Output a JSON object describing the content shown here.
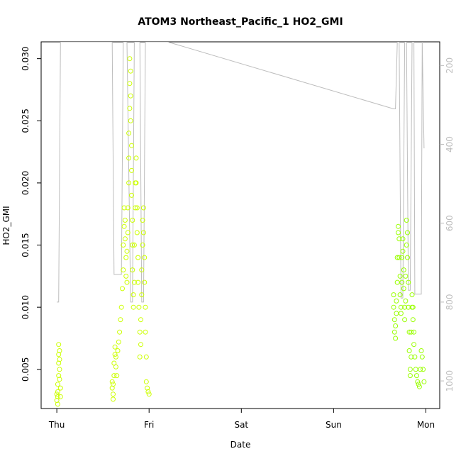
{
  "chart_data": {
    "type": "scatter",
    "title": "ATOM3 Northeast_Pacific_1 HO2_GMI",
    "xlabel": "Date",
    "ylabel": "HO2_GMI",
    "x_ticks": [
      "Thu",
      "Fri",
      "Sat",
      "Sun",
      "Mon"
    ],
    "x_tick_positions_days": [
      0,
      1,
      2,
      3,
      4
    ],
    "xlim_days": [
      -0.17,
      4.15
    ],
    "ylim": [
      0.00185,
      0.03135
    ],
    "y_ticks": [
      0.005,
      0.01,
      0.015,
      0.02,
      0.025,
      0.03
    ],
    "y_tick_labels": [
      "0.005",
      "0.010",
      "0.015",
      "0.020",
      "0.025",
      "0.030"
    ],
    "right_axis": {
      "label": "",
      "range": [
        1070,
        140
      ],
      "ticks": [
        200,
        400,
        600,
        800,
        1000
      ],
      "tick_labels": [
        "200",
        "400",
        "600",
        "800",
        "1000"
      ],
      "color": "#bdbdbd"
    },
    "point_colors": {
      "early": "#ccff00",
      "late": "#99ff00"
    },
    "line_color": "#bdbdbd",
    "series": [
      {
        "points": [
          [
            0.0,
            0.003
          ],
          [
            0.0,
            0.0025
          ],
          [
            0.01,
            0.0028
          ],
          [
            0.01,
            0.0032
          ],
          [
            0.01,
            0.0022
          ],
          [
            0.01,
            0.0038
          ],
          [
            0.02,
            0.0045
          ],
          [
            0.02,
            0.0055
          ],
          [
            0.02,
            0.0062
          ],
          [
            0.02,
            0.007
          ],
          [
            0.03,
            0.0065
          ],
          [
            0.03,
            0.0058
          ],
          [
            0.03,
            0.005
          ],
          [
            0.03,
            0.0042
          ],
          [
            0.04,
            0.0035
          ],
          [
            0.04,
            0.0028
          ],
          [
            0.6,
            0.004
          ],
          [
            0.6,
            0.0035
          ],
          [
            0.61,
            0.003
          ],
          [
            0.61,
            0.0026
          ],
          [
            0.61,
            0.0038
          ],
          [
            0.62,
            0.0045
          ],
          [
            0.62,
            0.0055
          ],
          [
            0.63,
            0.0062
          ],
          [
            0.63,
            0.0068
          ],
          [
            0.64,
            0.006
          ],
          [
            0.64,
            0.0052
          ],
          [
            0.65,
            0.0045
          ],
          [
            0.66,
            0.0065
          ],
          [
            0.67,
            0.0072
          ],
          [
            0.68,
            0.008
          ],
          [
            0.69,
            0.009
          ],
          [
            0.7,
            0.01
          ],
          [
            0.71,
            0.0115
          ],
          [
            0.72,
            0.013
          ],
          [
            0.72,
            0.015
          ],
          [
            0.73,
            0.0165
          ],
          [
            0.73,
            0.018
          ],
          [
            0.74,
            0.017
          ],
          [
            0.74,
            0.0155
          ],
          [
            0.75,
            0.014
          ],
          [
            0.75,
            0.0125
          ],
          [
            0.76,
            0.012
          ],
          [
            0.76,
            0.0145
          ],
          [
            0.77,
            0.016
          ],
          [
            0.77,
            0.018
          ],
          [
            0.78,
            0.02
          ],
          [
            0.78,
            0.022
          ],
          [
            0.78,
            0.024
          ],
          [
            0.79,
            0.026
          ],
          [
            0.79,
            0.028
          ],
          [
            0.79,
            0.03
          ],
          [
            0.8,
            0.029
          ],
          [
            0.8,
            0.027
          ],
          [
            0.8,
            0.025
          ],
          [
            0.81,
            0.023
          ],
          [
            0.81,
            0.021
          ],
          [
            0.81,
            0.019
          ],
          [
            0.82,
            0.017
          ],
          [
            0.82,
            0.015
          ],
          [
            0.82,
            0.013
          ],
          [
            0.83,
            0.011
          ],
          [
            0.83,
            0.01
          ],
          [
            0.84,
            0.012
          ],
          [
            0.84,
            0.015
          ],
          [
            0.85,
            0.018
          ],
          [
            0.85,
            0.02
          ],
          [
            0.86,
            0.022
          ],
          [
            0.86,
            0.02
          ],
          [
            0.87,
            0.018
          ],
          [
            0.87,
            0.016
          ],
          [
            0.88,
            0.014
          ],
          [
            0.88,
            0.012
          ],
          [
            0.89,
            0.01
          ],
          [
            0.9,
            0.008
          ],
          [
            0.9,
            0.006
          ],
          [
            0.91,
            0.007
          ],
          [
            0.91,
            0.009
          ],
          [
            0.92,
            0.011
          ],
          [
            0.92,
            0.013
          ],
          [
            0.93,
            0.015
          ],
          [
            0.93,
            0.017
          ],
          [
            0.94,
            0.018
          ],
          [
            0.94,
            0.016
          ],
          [
            0.95,
            0.014
          ],
          [
            0.95,
            0.012
          ],
          [
            0.96,
            0.01
          ],
          [
            0.96,
            0.008
          ],
          [
            0.97,
            0.006
          ],
          [
            0.97,
            0.004
          ],
          [
            0.98,
            0.0035
          ],
          [
            0.99,
            0.0032
          ],
          [
            1.0,
            0.003
          ]
        ]
      },
      {
        "points": [
          [
            3.65,
            0.011
          ],
          [
            3.65,
            0.01
          ],
          [
            3.66,
            0.009
          ],
          [
            3.66,
            0.008
          ],
          [
            3.67,
            0.0075
          ],
          [
            3.67,
            0.0085
          ],
          [
            3.68,
            0.0095
          ],
          [
            3.68,
            0.0105
          ],
          [
            3.69,
            0.012
          ],
          [
            3.69,
            0.014
          ],
          [
            3.7,
            0.016
          ],
          [
            3.7,
            0.0165
          ],
          [
            3.71,
            0.0155
          ],
          [
            3.71,
            0.014
          ],
          [
            3.72,
            0.0125
          ],
          [
            3.72,
            0.011
          ],
          [
            3.73,
            0.0095
          ],
          [
            3.73,
            0.01
          ],
          [
            3.74,
            0.012
          ],
          [
            3.74,
            0.014
          ],
          [
            3.75,
            0.0155
          ],
          [
            3.75,
            0.0145
          ],
          [
            3.76,
            0.013
          ],
          [
            3.76,
            0.0115
          ],
          [
            3.77,
            0.01
          ],
          [
            3.77,
            0.009
          ],
          [
            3.78,
            0.0105
          ],
          [
            3.78,
            0.0125
          ],
          [
            3.79,
            0.015
          ],
          [
            3.79,
            0.017
          ],
          [
            3.8,
            0.016
          ],
          [
            3.8,
            0.014
          ],
          [
            3.81,
            0.012
          ],
          [
            3.81,
            0.01
          ],
          [
            3.82,
            0.008
          ],
          [
            3.82,
            0.0065
          ],
          [
            3.83,
            0.005
          ],
          [
            3.83,
            0.0045
          ],
          [
            3.84,
            0.006
          ],
          [
            3.84,
            0.008
          ],
          [
            3.85,
            0.01
          ],
          [
            3.85,
            0.011
          ],
          [
            3.86,
            0.01
          ],
          [
            3.86,
            0.009
          ],
          [
            3.87,
            0.008
          ],
          [
            3.87,
            0.007
          ],
          [
            3.88,
            0.006
          ],
          [
            3.89,
            0.005
          ],
          [
            3.9,
            0.0045
          ],
          [
            3.91,
            0.004
          ],
          [
            3.92,
            0.0038
          ],
          [
            3.93,
            0.0036
          ],
          [
            3.94,
            0.005
          ],
          [
            3.95,
            0.0065
          ],
          [
            3.96,
            0.006
          ],
          [
            3.97,
            0.005
          ],
          [
            3.98,
            0.004
          ]
        ]
      }
    ],
    "pressure_line_hpa": [
      [
        0.0,
        800
      ],
      [
        0.02,
        800
      ],
      [
        0.04,
        140
      ],
      [
        0.6,
        140
      ],
      [
        0.62,
        730
      ],
      [
        0.7,
        730
      ],
      [
        0.72,
        140
      ],
      [
        0.76,
        140
      ],
      [
        0.8,
        800
      ],
      [
        0.82,
        800
      ],
      [
        0.84,
        140
      ],
      [
        0.9,
        140
      ],
      [
        0.92,
        800
      ],
      [
        0.94,
        800
      ],
      [
        0.96,
        140
      ],
      [
        1.0,
        140
      ],
      [
        1.2,
        140
      ],
      [
        3.65,
        310
      ],
      [
        3.67,
        310
      ],
      [
        3.69,
        140
      ],
      [
        3.71,
        140
      ],
      [
        3.73,
        790
      ],
      [
        3.75,
        790
      ],
      [
        3.77,
        140
      ],
      [
        3.79,
        140
      ],
      [
        3.81,
        770
      ],
      [
        3.83,
        770
      ],
      [
        3.85,
        140
      ],
      [
        3.87,
        140
      ],
      [
        3.88,
        780
      ],
      [
        3.95,
        780
      ],
      [
        3.96,
        140
      ],
      [
        3.98,
        410
      ]
    ]
  }
}
